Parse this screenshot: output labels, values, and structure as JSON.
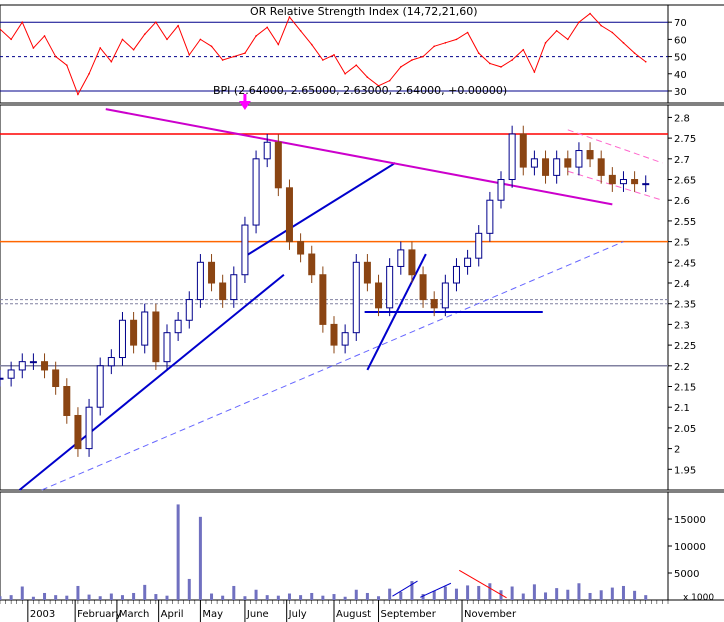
{
  "chart_data": [
    {
      "type": "line",
      "panel": "indicator",
      "title": "OR Relative Strength Index (14,72,21,60)",
      "y_ticks": [
        30,
        40,
        50,
        60,
        70
      ],
      "ylim": [
        23,
        80
      ],
      "reference_lines": [
        {
          "value": 70,
          "color": "#00008b",
          "style": "solid"
        },
        {
          "value": 50,
          "color": "#00008b",
          "style": "dashed"
        },
        {
          "value": 30,
          "color": "#00008b",
          "style": "solid"
        }
      ],
      "line_color": "#ff0000",
      "x": [
        0,
        4,
        8,
        12,
        16,
        20,
        24,
        28,
        32,
        36,
        40,
        44,
        48,
        52,
        56,
        60,
        64,
        68,
        72,
        76,
        80,
        84,
        88,
        92,
        96,
        100,
        104,
        108,
        112,
        116,
        120,
        124,
        128,
        132,
        136,
        140,
        144,
        148,
        152,
        156,
        160,
        164,
        168,
        172,
        176,
        180,
        184,
        188,
        192,
        196,
        200,
        204,
        208,
        212,
        216,
        220,
        224,
        228,
        232
      ],
      "values": [
        66,
        60,
        70,
        55,
        62,
        50,
        45,
        28,
        40,
        55,
        47,
        60,
        54,
        63,
        70,
        60,
        68,
        51,
        60,
        56,
        48,
        50,
        52,
        62,
        67,
        57,
        73,
        65,
        57,
        48,
        51,
        40,
        45,
        38,
        33,
        36,
        44,
        48,
        50,
        56,
        58,
        60,
        64,
        52,
        46,
        44,
        48,
        54,
        41,
        58,
        65,
        60,
        70,
        75,
        68,
        64,
        58,
        52,
        47
      ]
    },
    {
      "type": "candlestick",
      "panel": "price",
      "title": "BPI (2.64000, 2.65000, 2.63000, 2.64000, +0.00000)",
      "y_ticks": [
        1.95,
        2.0,
        2.05,
        2.1,
        2.15,
        2.2,
        2.25,
        2.3,
        2.35,
        2.4,
        2.45,
        2.5,
        2.55,
        2.6,
        2.65,
        2.7,
        2.75,
        2.8
      ],
      "ylim": [
        1.9,
        2.83
      ],
      "up_color": "#00008b",
      "down_color": "#8b4513",
      "x": [
        0,
        4,
        8,
        12,
        16,
        20,
        24,
        28,
        32,
        36,
        40,
        44,
        48,
        52,
        56,
        60,
        64,
        68,
        72,
        76,
        80,
        84,
        88,
        92,
        96,
        100,
        104,
        108,
        112,
        116,
        120,
        124,
        128,
        132,
        136,
        140,
        144,
        148,
        152,
        156,
        160,
        164,
        168,
        172,
        176,
        180,
        184,
        188,
        192,
        196,
        200,
        204,
        208,
        212,
        216,
        220,
        224,
        228,
        232
      ],
      "close": [
        2.17,
        2.19,
        2.21,
        2.21,
        2.19,
        2.15,
        2.08,
        2.0,
        2.1,
        2.2,
        2.22,
        2.31,
        2.25,
        2.33,
        2.21,
        2.28,
        2.31,
        2.36,
        2.45,
        2.4,
        2.36,
        2.42,
        2.54,
        2.7,
        2.74,
        2.63,
        2.5,
        2.47,
        2.42,
        2.3,
        2.25,
        2.28,
        2.45,
        2.4,
        2.34,
        2.44,
        2.48,
        2.42,
        2.36,
        2.34,
        2.4,
        2.44,
        2.46,
        2.52,
        2.6,
        2.65,
        2.76,
        2.68,
        2.7,
        2.66,
        2.7,
        2.68,
        2.72,
        2.7,
        2.66,
        2.64,
        2.65,
        2.64,
        2.64
      ],
      "horizontal_levels": [
        {
          "value": 2.76,
          "color": "#ff0000"
        },
        {
          "value": 2.5,
          "color": "#ff6600"
        },
        {
          "value": 2.36,
          "color": "#8080a0",
          "style": "dashed"
        },
        {
          "value": 2.35,
          "color": "#8080a0",
          "style": "dashed"
        },
        {
          "value": 2.2,
          "color": "#8080a0"
        }
      ],
      "trendlines": [
        {
          "from": [
            7,
            1.9
          ],
          "to": [
            102,
            2.42
          ],
          "color": "#0000cc"
        },
        {
          "from": [
            87,
            2.46
          ],
          "to": [
            142,
            2.69
          ],
          "color": "#0000cc"
        },
        {
          "from": [
            15,
            1.9
          ],
          "to": [
            224,
            2.5
          ],
          "color": "#6666ff",
          "style": "dashed"
        },
        {
          "from": [
            131,
            2.33
          ],
          "to": [
            195,
            2.33
          ],
          "color": "#0000cc"
        },
        {
          "from": [
            132,
            2.19
          ],
          "to": [
            153,
            2.47
          ],
          "color": "#0000cc"
        },
        {
          "from": [
            38,
            2.82
          ],
          "to": [
            220,
            2.59
          ],
          "color": "#cc00cc"
        },
        {
          "from": [
            204,
            2.77
          ],
          "to": [
            238,
            2.69
          ],
          "color": "#ff66cc",
          "style": "dashed"
        },
        {
          "from": [
            204,
            2.67
          ],
          "to": [
            238,
            2.6
          ],
          "color": "#ff66cc",
          "style": "dashed"
        }
      ],
      "arrow_marker": {
        "x": 88,
        "color": "#ff00ff"
      }
    },
    {
      "type": "bar",
      "panel": "volume",
      "y_ticks": [
        5000,
        10000,
        15000
      ],
      "ylim": [
        0,
        20000
      ],
      "scale_label": "x 1000",
      "bar_color": "#7070c0",
      "x": [
        0,
        4,
        8,
        12,
        16,
        20,
        24,
        28,
        32,
        36,
        40,
        44,
        48,
        52,
        56,
        60,
        64,
        68,
        72,
        76,
        80,
        84,
        88,
        92,
        96,
        100,
        104,
        108,
        112,
        116,
        120,
        124,
        128,
        132,
        136,
        140,
        144,
        148,
        152,
        156,
        160,
        164,
        168,
        172,
        176,
        180,
        184,
        188,
        192,
        196,
        200,
        204,
        208,
        212,
        216,
        220,
        224,
        228,
        232
      ],
      "values": [
        700,
        900,
        2500,
        600,
        1300,
        900,
        800,
        2600,
        1000,
        700,
        1200,
        900,
        1300,
        2800,
        1100,
        800,
        17700,
        3900,
        15400,
        1200,
        800,
        2600,
        700,
        1900,
        900,
        800,
        1200,
        900,
        1300,
        800,
        1100,
        600,
        1900,
        1300,
        700,
        2100,
        1500,
        3500,
        1100,
        1700,
        2500,
        2100,
        2700,
        2600,
        3100,
        1800,
        2500,
        1200,
        2900,
        1400,
        2200,
        1900,
        3100,
        1300,
        1800,
        2300,
        2600,
        1700,
        900
      ],
      "annotations": [
        {
          "from": [
            141,
            700
          ],
          "to": [
            150,
            3500
          ],
          "color": "#0000cc"
        },
        {
          "from": [
            151,
            500
          ],
          "to": [
            162,
            3100
          ],
          "color": "#0000cc"
        },
        {
          "from": [
            165,
            5500
          ],
          "to": [
            182,
            400
          ],
          "color": "#ff0000"
        }
      ]
    }
  ],
  "x_axis": {
    "ticks": [
      {
        "label": "2003",
        "x": 10
      },
      {
        "label": "February",
        "x": 27
      },
      {
        "label": "March",
        "x": 42
      },
      {
        "label": "April",
        "x": 57
      },
      {
        "label": "May",
        "x": 72
      },
      {
        "label": "June",
        "x": 88
      },
      {
        "label": "July",
        "x": 103
      },
      {
        "label": "August",
        "x": 120
      },
      {
        "label": "September",
        "x": 136
      },
      {
        "label": "November",
        "x": 166
      }
    ]
  }
}
